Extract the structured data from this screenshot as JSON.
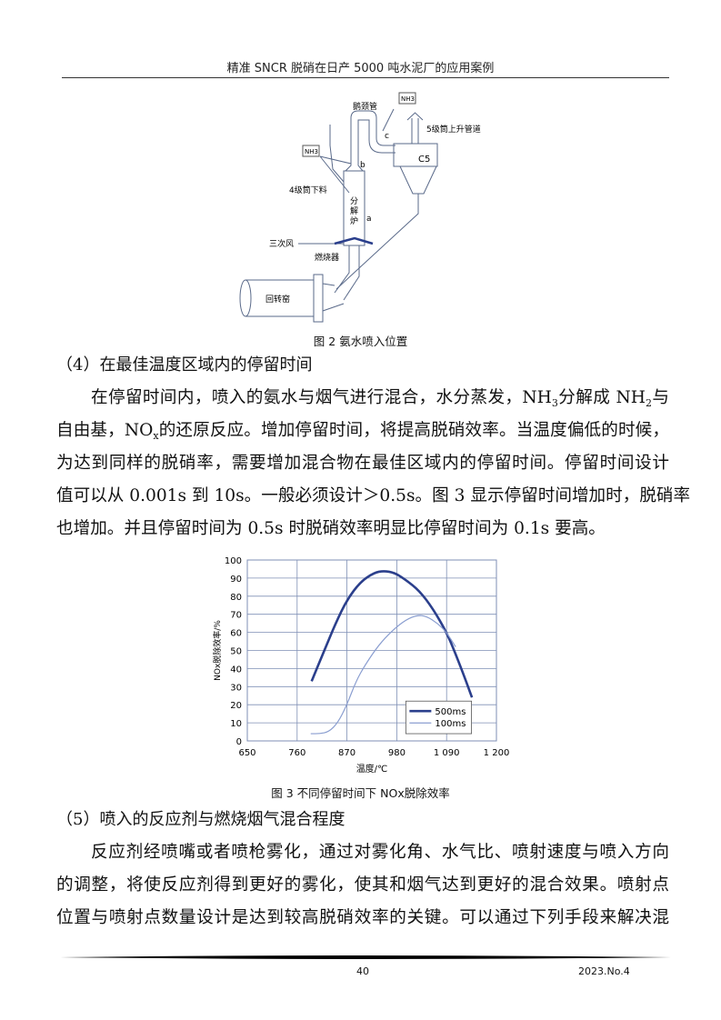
{
  "header": {
    "title": "精准 SNCR 脱硝在日产 5000 吨水泥厂的应用案例"
  },
  "figure2": {
    "caption": "图 2  氨水喷入位置",
    "labels": {
      "nh3_top": "NH3",
      "gooseneck": "鹅颈管",
      "riser": "5级筒上升管道",
      "c_point": "c",
      "nh3_left": "NH3",
      "b_point": "b",
      "c5": "C5",
      "feed": "4级筒下料",
      "calciner": [
        "分",
        "解",
        "炉"
      ],
      "a_point": "a",
      "tertiary_air": "三次风",
      "burner": "燃烧器",
      "kiln": "回转窑"
    }
  },
  "section4": {
    "heading": "（4）在最佳温度区域内的停留时间",
    "lines": [
      [
        "在停留时间内，喷入的氨水与烟气进行混合，水分蒸发，NH",
        "3",
        "分解成  NH",
        "2",
        "与"
      ],
      [
        "自由基，NO",
        "x",
        "的还原反应。增加停留时间，将提高脱硝效率。当温度偏低的时候，"
      ],
      [
        "为达到同样的脱硝率，需要增加混合物在最佳区域内的停留时间。停留时间设计"
      ],
      [
        "值可以从 0.001s 到 10s。一般必须设计＞0.5s。图 3 显示停留时间增加时，脱硝率"
      ],
      [
        "也增加。并且停留时间为 0.5s 时脱硝效率明显比停留时间为 0.1s 要高。"
      ]
    ]
  },
  "chart_data": {
    "type": "line",
    "title": "图 3  不同停留时间下 NOx脱除效率",
    "xlabel": "温度/℃",
    "ylabel": "NOx脱除效率/%",
    "xlim": [
      650,
      1200
    ],
    "ylim": [
      0,
      100
    ],
    "x_ticks": [
      "650",
      "760",
      "870",
      "980",
      "1 090",
      "1 200"
    ],
    "x_tick_values": [
      650,
      760,
      870,
      980,
      1090,
      1200
    ],
    "y_ticks": [
      "0",
      "10",
      "20",
      "30",
      "40",
      "50",
      "60",
      "70",
      "80",
      "90",
      "100"
    ],
    "grid": true,
    "legend_position": "bottom-right",
    "series": [
      {
        "name": "500ms",
        "color": "#2b3f8c",
        "x": [
          792,
          820,
          845,
          870,
          900,
          930,
          951,
          975,
          1000,
          1030,
          1060,
          1090,
          1110,
          1130,
          1146
        ],
        "y": [
          33,
          50,
          65,
          78,
          88,
          93,
          94,
          93,
          89,
          83,
          73,
          60,
          48,
          35,
          24
        ]
      },
      {
        "name": "100ms",
        "color": "#8a9ed0",
        "x": [
          790,
          810,
          830,
          850,
          870,
          890,
          910,
          940,
          970,
          1000,
          1025,
          1045,
          1070,
          1090,
          1110
        ],
        "y": [
          4,
          4,
          5,
          10,
          20,
          33,
          42,
          53,
          61,
          67,
          69.5,
          69,
          65,
          60,
          52
        ]
      }
    ]
  },
  "section5": {
    "heading": "（5）喷入的反应剂与燃烧烟气混合程度",
    "lines": [
      "反应剂经喷嘴或者喷枪雾化，通过对雾化角、水气比、喷射速度与喷入方向",
      "的调整，将使反应剂得到更好的雾化，使其和烟气达到更好的混合效果。喷射点",
      "位置与喷射点数量设计是达到较高脱硝效率的关键。可以通过下列手段来解决混"
    ]
  },
  "footer": {
    "page": "40",
    "issue": "2023.No.4"
  }
}
